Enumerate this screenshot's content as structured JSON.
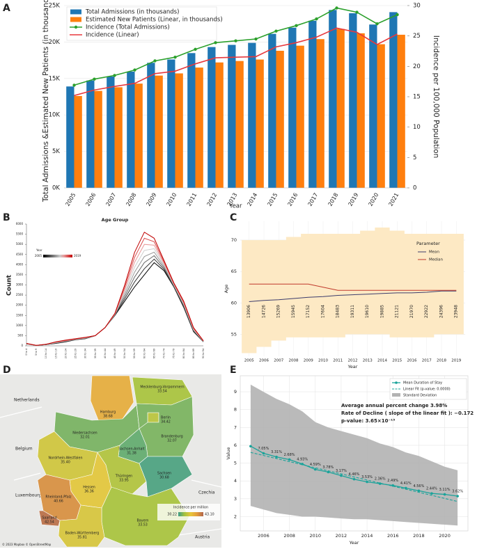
{
  "chart_data": [
    {
      "label": "A",
      "type": "combo",
      "xlabel": "Year",
      "ylabel": "Total Admissions &Estimated New Patients (in thousands)",
      "y2label": "Incidence per 100,000 Population",
      "x": [
        2005,
        2006,
        2007,
        2008,
        2009,
        2010,
        2011,
        2012,
        2013,
        2014,
        2015,
        2016,
        2017,
        2018,
        2019,
        2020,
        2021
      ],
      "series": [
        {
          "name": "Total Admissions (in thousands)",
          "kind": "bar",
          "color": "#1f77b4",
          "values": [
            13906,
            14726,
            15269,
            15945,
            17152,
            17604,
            18483,
            19311,
            19610,
            19885,
            21121,
            21970,
            22922,
            24396,
            23948,
            22400,
            24100
          ]
        },
        {
          "name": "Estimated New Patients (Linear, in thousands)",
          "kind": "bar",
          "color": "#ff7f0e",
          "values": [
            12600,
            13300,
            13800,
            14300,
            15400,
            15700,
            16500,
            17200,
            17400,
            17600,
            18800,
            19500,
            20400,
            21800,
            21200,
            19700,
            21000
          ]
        },
        {
          "name": "Incidence (Total Admissions)",
          "kind": "line",
          "marker": true,
          "axis": "y2",
          "color": "#2ca02c",
          "values": [
            16.9,
            17.9,
            18.5,
            19.4,
            20.9,
            21.5,
            22.8,
            23.9,
            24.2,
            24.5,
            25.8,
            26.7,
            27.8,
            29.6,
            28.9,
            27.0,
            28.5
          ]
        },
        {
          "name": "Incidence (Linear)",
          "kind": "line",
          "marker": false,
          "axis": "y2",
          "color": "#e8383d",
          "values": [
            15.2,
            16.1,
            16.7,
            17.2,
            18.8,
            19.2,
            20.4,
            21.4,
            21.5,
            21.6,
            23.2,
            23.9,
            24.8,
            26.3,
            25.6,
            23.6,
            25.3
          ]
        }
      ],
      "ylim": [
        0,
        25000
      ],
      "yticks": [
        {
          "value": 0,
          "label": "0K"
        },
        {
          "value": 5000,
          "label": "5K"
        },
        {
          "value": 10000,
          "label": "10K"
        },
        {
          "value": 15000,
          "label": "15K"
        },
        {
          "value": 20000,
          "label": "20K"
        },
        {
          "value": 25000,
          "label": "25K"
        }
      ],
      "y2lim": [
        0,
        30
      ],
      "y2ticks": [
        0,
        5,
        10,
        15,
        20,
        25,
        30
      ],
      "grid": true,
      "legend": "upper left"
    },
    {
      "label": "B",
      "type": "line",
      "title": "Age Group",
      "ylabel": "Count",
      "categories": [
        "0 to 4",
        "5 to 9",
        "10 to 14",
        "15 to 19",
        "20 to 24",
        "25 to 29",
        "30 to 34",
        "35 to 39",
        "40 to 44",
        "45 to 49",
        "50 to 54",
        "55 to 59",
        "60 to 64",
        "65 to 69",
        "70 to 74",
        "75 to 79",
        "80 to 84",
        "85 to 89",
        "90 to 94"
      ],
      "series": [
        {
          "color": "#000000",
          "values": [
            100,
            20,
            60,
            120,
            200,
            300,
            350,
            500,
            900,
            1500,
            2200,
            2900,
            3500,
            4100,
            3700,
            2900,
            1900,
            700,
            200
          ]
        },
        {
          "color": "#333333",
          "values": [
            103,
            20,
            63,
            131,
            211,
            307,
            360,
            500,
            900,
            1514,
            2314,
            3143,
            3800,
            4271,
            3771,
            2929,
            1943,
            729,
            207
          ]
        },
        {
          "color": "#666666",
          "values": [
            106,
            20,
            66,
            143,
            223,
            314,
            370,
            500,
            900,
            1529,
            2429,
            3386,
            4100,
            4443,
            3843,
            2957,
            1986,
            757,
            214
          ]
        },
        {
          "color": "#999999",
          "values": [
            109,
            20,
            69,
            154,
            234,
            321,
            380,
            500,
            900,
            1543,
            2543,
            3629,
            4400,
            4614,
            3914,
            2986,
            2029,
            786,
            221
          ]
        },
        {
          "color": "#cccccc",
          "values": [
            111,
            20,
            71,
            166,
            246,
            329,
            390,
            500,
            900,
            1557,
            2657,
            3871,
            4700,
            4786,
            3986,
            3014,
            2071,
            814,
            229
          ]
        },
        {
          "color": "#e89a9a",
          "values": [
            114,
            20,
            74,
            177,
            257,
            336,
            400,
            500,
            900,
            1571,
            2771,
            4114,
            5000,
            4957,
            4057,
            3043,
            2114,
            843,
            236
          ]
        },
        {
          "color": "#d84a4a",
          "values": [
            117,
            20,
            77,
            189,
            269,
            343,
            410,
            500,
            900,
            1586,
            2886,
            4357,
            5300,
            5129,
            4129,
            3071,
            2157,
            871,
            243
          ]
        },
        {
          "color": "#c00000",
          "values": [
            120,
            20,
            80,
            200,
            280,
            350,
            420,
            500,
            900,
            1600,
            3000,
            4600,
            5600,
            5300,
            4200,
            3100,
            2200,
            900,
            250
          ]
        }
      ],
      "ylim": [
        0,
        6000
      ],
      "yticks": [
        0,
        500,
        1000,
        1500,
        2000,
        2500,
        3000,
        3500,
        4000,
        4500,
        5000,
        5500,
        6000
      ],
      "colorbar": {
        "label": "Year",
        "ticks": [
          2005,
          2019
        ]
      }
    },
    {
      "label": "C",
      "type": "band",
      "xlabel": "Year",
      "ylabel": "Age",
      "legend_title": "Parameter",
      "x": [
        2005,
        2006,
        2007,
        2008,
        2009,
        2010,
        2011,
        2012,
        2013,
        2014,
        2015,
        2016,
        2017,
        2018,
        2019
      ],
      "series": [
        {
          "name": "Mean",
          "color": "#3b3b6b",
          "values": [
            60.2,
            60.4,
            60.5,
            60.7,
            60.9,
            61.0,
            61.2,
            61.3,
            61.4,
            61.5,
            61.6,
            61.6,
            61.7,
            61.9,
            61.9
          ]
        },
        {
          "name": "Median",
          "color": "#c0392b",
          "values": [
            63,
            63,
            63,
            63,
            63,
            62.5,
            62,
            62,
            62,
            62,
            62,
            62,
            62,
            62,
            62
          ]
        }
      ],
      "band": {
        "color": "#fde9c4",
        "upper": [
          70,
          70,
          70,
          70.5,
          71,
          71,
          71,
          71,
          71.5,
          72,
          71.5,
          71,
          71,
          71,
          71
        ],
        "lower": [
          52,
          53,
          54,
          54.5,
          54.5,
          54.5,
          54.5,
          55,
          55,
          55,
          54.5,
          54.5,
          54.5,
          55,
          55
        ]
      },
      "counts": [
        13906,
        14726,
        15269,
        15945,
        17152,
        17604,
        18483,
        19311,
        19610,
        19885,
        21121,
        21970,
        22922,
        24396,
        23948
      ],
      "ylim": [
        51.5,
        73
      ],
      "yticks": [
        55,
        60,
        65,
        70
      ],
      "grid": true
    },
    {
      "label": "D",
      "type": "map",
      "regions": [
        "Mecklenburg-Vorpommern",
        "Hamburg",
        "Niedersachsen",
        "Berlin",
        "Brandenburg",
        "Sachsen-Anhalt",
        "Nordrhein-Westfalen",
        "Hessen",
        "Thüringen",
        "Sachsen",
        "Rheinland-Pfalz",
        "Saarland",
        "Bayern",
        "Baden-Württemberg"
      ],
      "values": [
        33.54,
        38.68,
        32.01,
        34.42,
        32.07,
        31.38,
        35.4,
        36.36,
        33.95,
        30.68,
        40.66,
        42.54,
        33.53,
        35.81
      ],
      "value_labels": [
        "33.54",
        "38.68",
        "32.01",
        "34.42",
        "32.07",
        "31.38",
        "35.40",
        "36.36",
        "33.95",
        "30.68",
        "40.66",
        "42.54",
        "33.53",
        "35.81"
      ],
      "colorbar": {
        "label": "Incidence per million",
        "clim": [
          30.22,
          43.1
        ],
        "ticks": [
          30.22,
          {
            "value": 43.1,
            "label": "43.10"
          }
        ],
        "colors": [
          "#3b9c8a",
          "#a5c23c",
          "#e8c53a",
          "#e39b3b",
          "#b0644a"
        ]
      },
      "countries": [
        "Netherlands",
        "Belgium",
        "Luxembourg",
        "Czechia",
        "Austria"
      ],
      "attribution": "© 2023 Mapbox © OpenStreetMap"
    },
    {
      "label": "E",
      "type": "trend",
      "xlabel": "Year",
      "ylabel": "Value",
      "x": [
        2005,
        2006,
        2007,
        2008,
        2009,
        2010,
        2011,
        2012,
        2013,
        2014,
        2015,
        2016,
        2017,
        2018,
        2019,
        2020,
        2021
      ],
      "series": [
        {
          "name": "Mean Duration of Stay",
          "color": "#1aa39a",
          "values": [
            5.95,
            5.55,
            5.35,
            5.2,
            4.95,
            4.65,
            4.5,
            4.3,
            4.1,
            3.95,
            3.85,
            3.75,
            3.6,
            3.45,
            3.3,
            3.25,
            3.15
          ]
        }
      ],
      "change_labels": [
        null,
        "7.05%",
        "3.31%",
        "2.68%",
        "4.93%",
        "4.59%",
        "3.78%",
        "3.17%",
        "4.46%",
        "3.53%",
        "2.36%",
        "2.49%",
        "4.41%",
        "4.56%",
        "2.44%",
        "3.11%",
        "3.62%"
      ],
      "fit": {
        "name": "Linear Fit (p-value: 0.0000)",
        "color": "#1aa39a",
        "x": [
          2005,
          2021
        ],
        "values": [
          5.6,
          2.85
        ]
      },
      "band": {
        "name": "Standard Deviation",
        "color": "#b3b3b3",
        "upper": [
          9.4,
          9.0,
          8.6,
          8.3,
          7.9,
          7.3,
          7.0,
          6.8,
          6.6,
          6.4,
          6.1,
          5.9,
          5.6,
          5.4,
          5.1,
          4.8,
          4.6
        ],
        "lower": [
          2.6,
          2.4,
          2.2,
          2.1,
          2.0,
          2.0,
          1.95,
          1.9,
          1.85,
          1.85,
          1.8,
          1.75,
          1.7,
          1.65,
          1.6,
          1.55,
          1.5
        ]
      },
      "annotations": [
        "Average annual percent change 3.98%",
        "Rate of Decline ( slope of the linear fit ):  −0.172",
        "p-value:  3.65×10⁻¹³"
      ],
      "xlim": [
        2004.2,
        2021.8
      ],
      "xticks": [
        2006,
        2008,
        2010,
        2012,
        2014,
        2016,
        2018,
        2020
      ],
      "ylim": [
        1.2,
        9.9
      ],
      "yticks": [
        2,
        3,
        4,
        5,
        6,
        7,
        8,
        9
      ],
      "grid": true,
      "legend": "upper right"
    }
  ]
}
